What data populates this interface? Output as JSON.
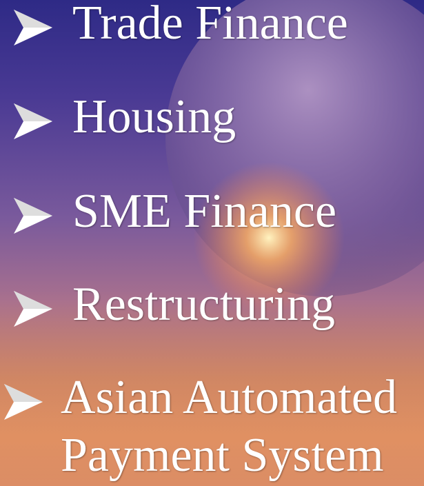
{
  "items": [
    "Trade Finance",
    "Housing",
    "SME Finance",
    "Restructuring",
    "Asian Automated Payment System"
  ]
}
